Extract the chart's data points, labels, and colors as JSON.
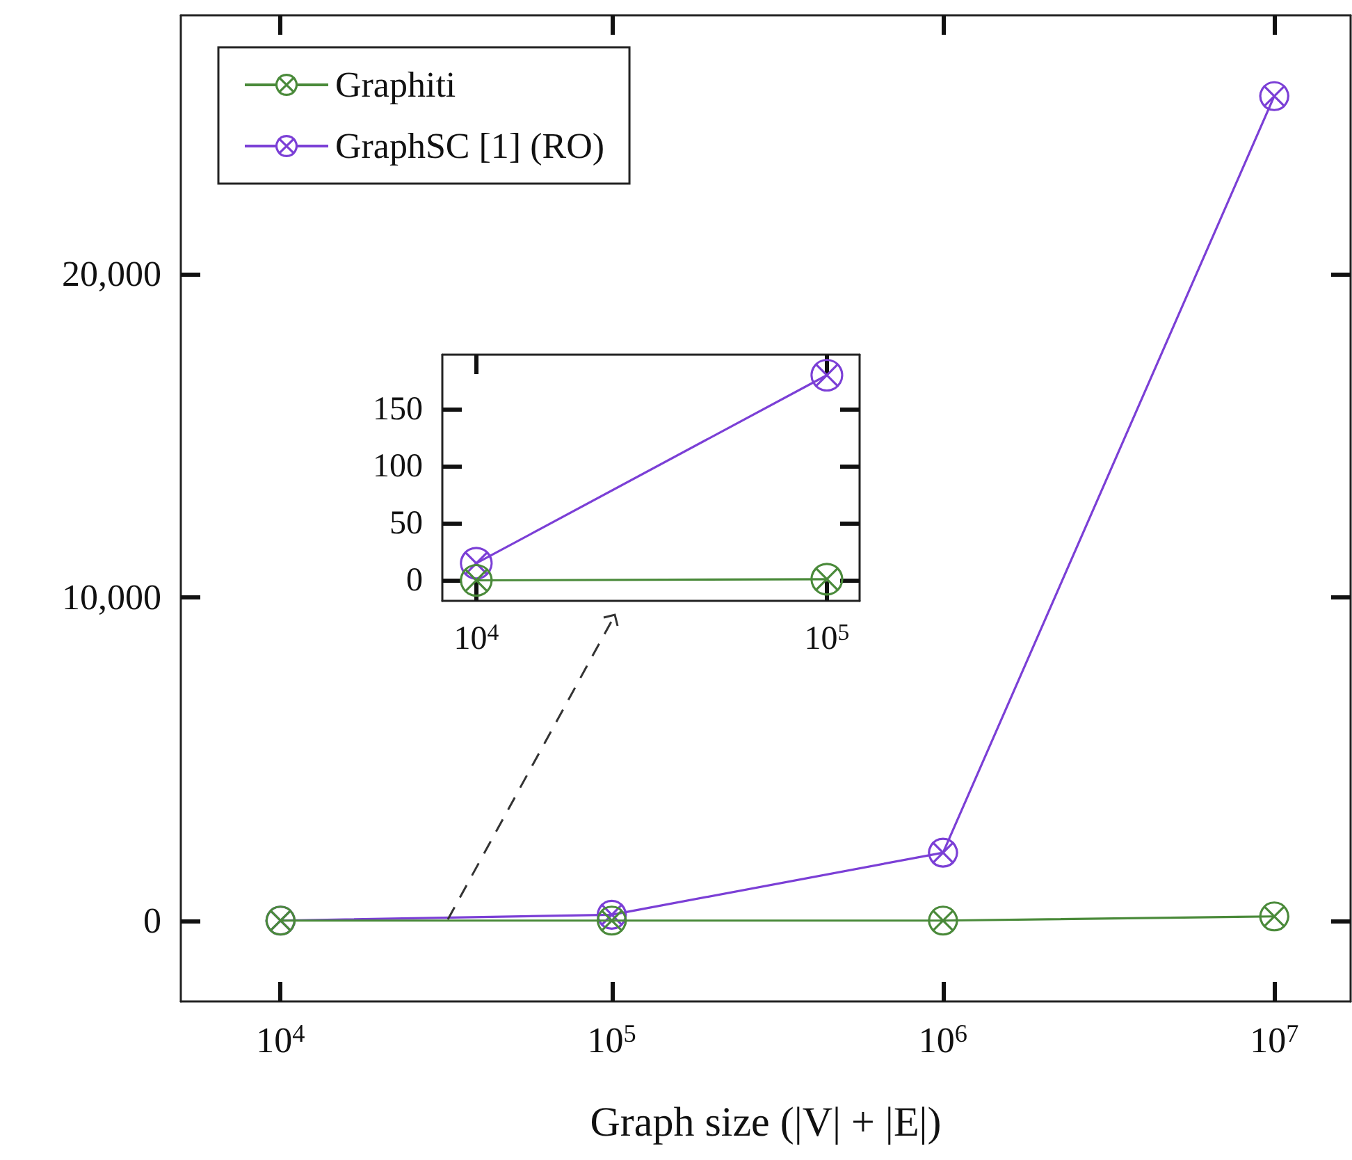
{
  "chart_data": [
    {
      "type": "line",
      "xlabel": "Graph size (|V| + |E|)",
      "log": "x",
      "x": [
        10000,
        100000,
        1000000,
        10000000
      ],
      "series": [
        {
          "name": "Graphiti",
          "color": "#4a8a3a",
          "values": [
            0,
            0,
            0,
            130
          ]
        },
        {
          "name": "GraphSC [1] (RO)",
          "color": "#7b3fd6",
          "values": [
            0,
            180,
            2100,
            25500
          ]
        }
      ],
      "xlim": [
        5000,
        17000000
      ],
      "xticks": [
        {
          "value": 10000,
          "label": "10$^{4}$"
        },
        {
          "value": 100000,
          "label": "10$^{5}$"
        },
        {
          "value": 1000000,
          "label": "10$^{6}$"
        },
        {
          "value": 10000000,
          "label": "10$^{7}$"
        }
      ],
      "ylim": [
        -2500,
        28000
      ],
      "yticks": [
        0,
        {
          "value": 10000,
          "label": "10,000"
        },
        {
          "value": 20000,
          "label": "20,000"
        }
      ],
      "grid": false,
      "legend": "top left",
      "marker": "cross",
      "line_style": "solid"
    },
    {
      "type": "line",
      "log": "x",
      "x": [
        10000,
        100000
      ],
      "series": [
        {
          "color": "#4a8a3a",
          "values": [
            0,
            1
          ]
        },
        {
          "color": "#7b3fd6",
          "values": [
            15,
            180
          ]
        }
      ],
      "xlim": [
        8000,
        124000
      ],
      "xticks": [
        {
          "value": 10000,
          "label": "10$^{4}$"
        },
        {
          "value": 100000,
          "label": "10$^{5}$"
        }
      ],
      "ylim": [
        -18,
        198
      ],
      "yticks": [
        0,
        50,
        100,
        150
      ],
      "grid": false,
      "legend": false,
      "marker": "cross",
      "line_style": "solid"
    }
  ]
}
